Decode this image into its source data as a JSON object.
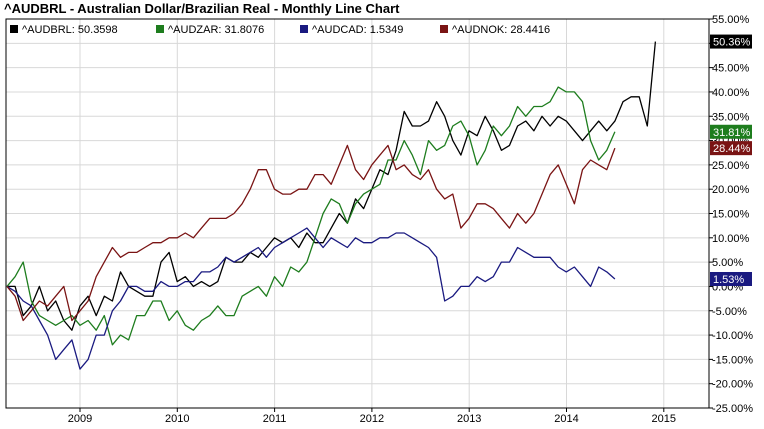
{
  "title": "^AUDBRL - Australian Dollar/Brazilian Real - Monthly Line Chart",
  "legend": [
    {
      "label": "^AUDBRL: 50.3598",
      "color": "#000000"
    },
    {
      "label": "^AUDZAR: 31.8076",
      "color": "#1e7d1e"
    },
    {
      "label": "^AUDCAD: 1.5349",
      "color": "#1a1a80"
    },
    {
      "label": "^AUDNOK: 28.4416",
      "color": "#7a1414"
    }
  ],
  "chart_data": {
    "type": "line",
    "title": "^AUDBRL - Australian Dollar/Brazilian Real - Monthly Line Chart",
    "xlabel": "",
    "ylabel": "",
    "x_tick_labels": [
      "2009",
      "2010",
      "2011",
      "2012",
      "2013",
      "2014",
      "2015"
    ],
    "y_tick_labels": [
      "55.00%",
      "50.00%",
      "45.00%",
      "40.00%",
      "35.00%",
      "30.00%",
      "25.00%",
      "20.00%",
      "15.00%",
      "10.00%",
      "5.00%",
      "0.00%",
      "-5.00%",
      "-10.00%",
      "-15.00%",
      "-20.00%",
      "-25.00%"
    ],
    "ylim": [
      -25,
      55
    ],
    "y_unit": "percent change",
    "x_start": 2008.25,
    "x_step": 0.0833,
    "grid": true,
    "legend_position": "top-left",
    "series": [
      {
        "name": "^AUDBRL",
        "color": "#000000",
        "end_label": "50.36%",
        "values": [
          0,
          0,
          -6,
          -4,
          0,
          -5,
          -3,
          -7,
          -9,
          -4,
          -2,
          -6,
          -2,
          -3,
          3,
          0,
          -1,
          -2,
          -2,
          5,
          7,
          1,
          2,
          0,
          1,
          0,
          1,
          6,
          5,
          5,
          7,
          6,
          8,
          10,
          9,
          10,
          8,
          11,
          9,
          9,
          12,
          15,
          13,
          18,
          16,
          20,
          24,
          23,
          28,
          36,
          33,
          33,
          34,
          38,
          35,
          30,
          27,
          32,
          31,
          35,
          32,
          28,
          29,
          33,
          34,
          32,
          35,
          33,
          35,
          34,
          32,
          30,
          32,
          34,
          32,
          34,
          38,
          39,
          39,
          33,
          50.36
        ]
      },
      {
        "name": "^AUDZAR",
        "color": "#1e7d1e",
        "end_label": "31.81%",
        "values": [
          0,
          2,
          5,
          -3,
          -6,
          -7,
          -8,
          -7,
          -6,
          -8,
          -7,
          -9,
          -6,
          -12,
          -10,
          -11,
          -6,
          -6,
          -3,
          -3,
          -7,
          -5,
          -8,
          -9,
          -7,
          -6,
          -4,
          -6,
          -6,
          -2,
          -1,
          0,
          -2,
          2,
          0,
          4,
          3,
          5,
          10,
          15,
          18,
          17,
          13,
          17,
          19,
          20,
          21,
          26,
          26,
          30,
          27,
          23,
          30,
          28,
          29,
          33,
          34,
          31,
          25,
          28,
          33,
          31,
          33,
          37,
          35,
          37,
          37,
          38,
          41,
          40,
          40,
          38,
          30,
          26,
          28,
          31.81
        ]
      },
      {
        "name": "^AUDCAD",
        "color": "#1a1a80",
        "end_label": "1.53%",
        "values": [
          0,
          -1,
          -3,
          -4,
          -7,
          -10,
          -15,
          -13,
          -11,
          -17,
          -15,
          -10,
          -10,
          -5,
          -3,
          0,
          0,
          -1,
          -1,
          1,
          0,
          0,
          1,
          1,
          3,
          3,
          4,
          6,
          5,
          6,
          7,
          8,
          6,
          8,
          9,
          10,
          11,
          12,
          10,
          8,
          10,
          9,
          8,
          10,
          9,
          9,
          10,
          10,
          11,
          11,
          10,
          9,
          8,
          6,
          -3,
          -2,
          0,
          0,
          2,
          1,
          2,
          5,
          5,
          8,
          7,
          6,
          6,
          6,
          4,
          3,
          4,
          2,
          0,
          4,
          3,
          1.53
        ]
      },
      {
        "name": "^AUDNOK",
        "color": "#7a1414",
        "end_label": "28.44%",
        "values": [
          0,
          -2,
          -7,
          -5,
          -3,
          -4,
          -2,
          0,
          -7,
          -5,
          -3,
          2,
          5,
          8,
          6,
          7,
          7,
          8,
          9,
          9,
          10,
          10,
          11,
          10,
          12,
          14,
          14,
          14,
          15,
          17,
          20,
          24,
          24,
          20,
          19,
          19,
          20,
          20,
          23,
          23,
          21,
          25,
          29,
          24,
          22,
          25,
          27,
          29,
          24,
          25,
          23,
          22,
          24,
          20,
          18,
          19,
          12,
          14,
          17,
          17,
          16,
          14,
          12,
          15,
          13,
          15,
          19,
          23,
          25,
          21,
          17,
          24,
          26,
          25,
          24,
          28.44
        ]
      }
    ]
  }
}
